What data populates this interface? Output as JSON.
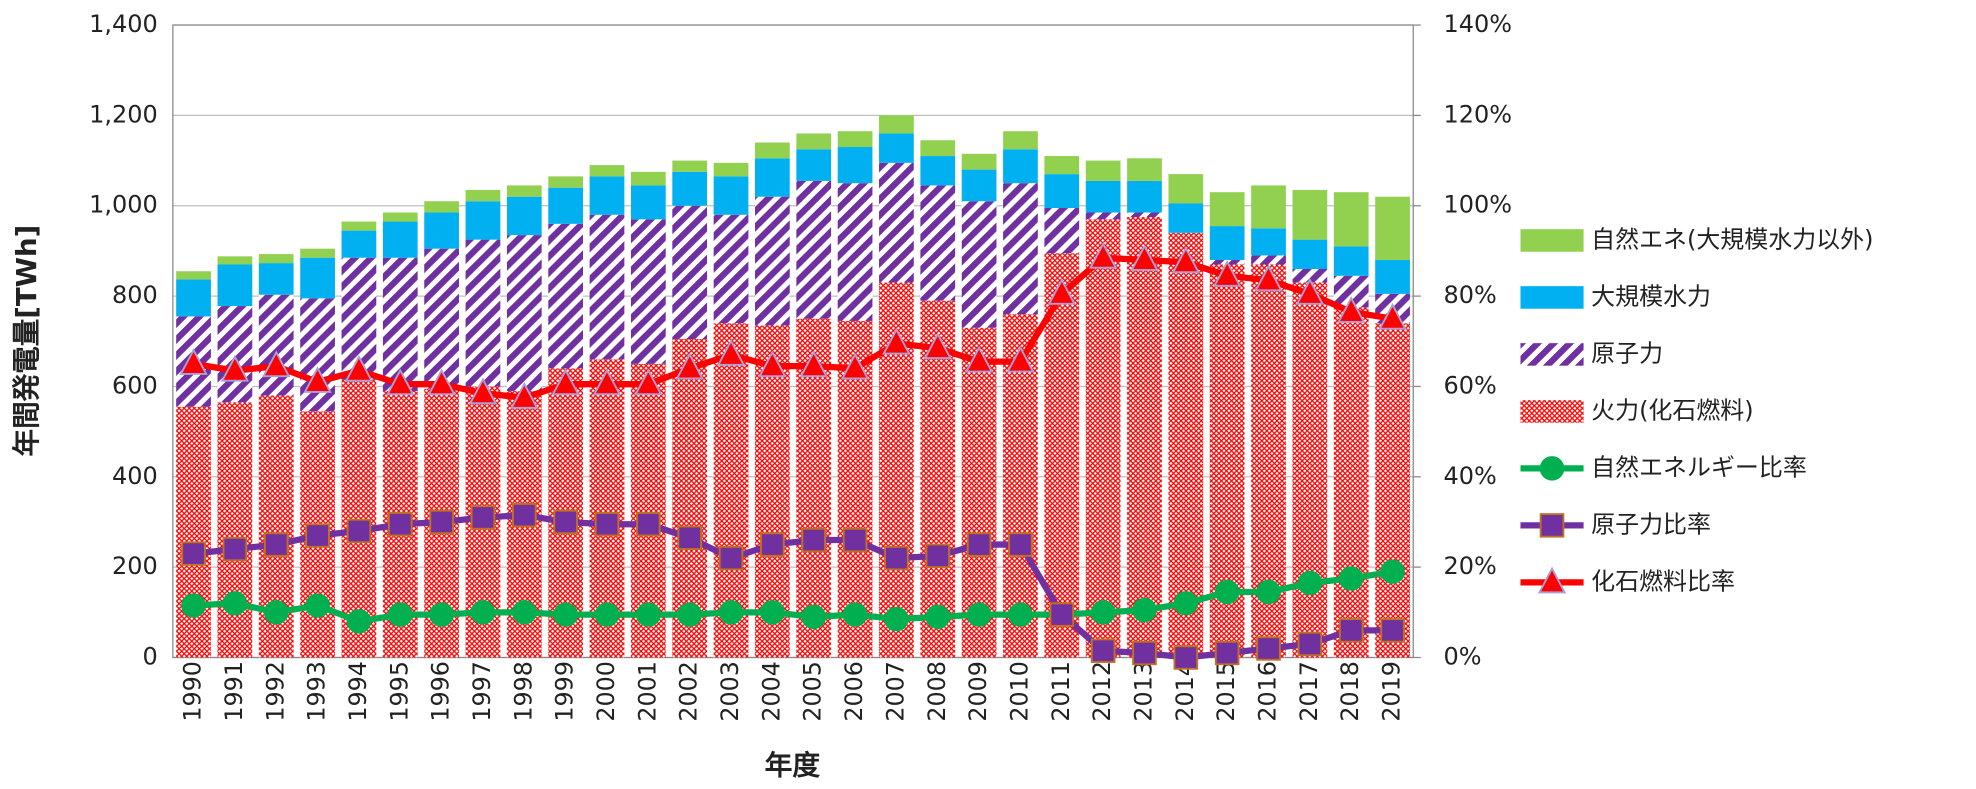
{
  "chart_data": {
    "type": "bar",
    "categories": [
      "1990",
      "1991",
      "1992",
      "1993",
      "1994",
      "1995",
      "1996",
      "1997",
      "1998",
      "1999",
      "2000",
      "2001",
      "2002",
      "2003",
      "2004",
      "2005",
      "2006",
      "2007",
      "2008",
      "2009",
      "2010",
      "2011",
      "2012",
      "2013",
      "2014",
      "2015",
      "2016",
      "2017",
      "2018",
      "2019"
    ],
    "x_label": "年度",
    "y_label": "年間発電量[TWh]",
    "ylim": [
      0,
      1400
    ],
    "yticks": [
      0,
      200,
      400,
      600,
      800,
      {
        "value": 1000,
        "label": "1,000"
      },
      {
        "value": 1200,
        "label": "1,200"
      },
      {
        "value": 1400,
        "label": "1,400"
      }
    ],
    "y2lim": [
      0,
      140
    ],
    "y2ticks": [
      {
        "value": 0,
        "label": "0%"
      },
      {
        "value": 20,
        "label": "20%"
      },
      {
        "value": 40,
        "label": "40%"
      },
      {
        "value": 60,
        "label": "60%"
      },
      {
        "value": 80,
        "label": "80%"
      },
      {
        "value": 100,
        "label": "100%"
      },
      {
        "value": 120,
        "label": "120%"
      },
      {
        "value": 140,
        "label": "140%"
      }
    ],
    "grid": true,
    "legend": "right",
    "stacked": true,
    "series": [
      {
        "name": "火力(化石燃料)",
        "type": "bar",
        "color": "#ff0000",
        "pattern": "crosshatch",
        "values": [
          555,
          565,
          580,
          545,
          615,
          590,
          595,
          600,
          590,
          640,
          660,
          650,
          705,
          740,
          735,
          750,
          745,
          830,
          790,
          730,
          760,
          895,
          970,
          975,
          940,
          870,
          870,
          830,
          775,
          740
        ]
      },
      {
        "name": "原子力",
        "type": "bar",
        "color": "#7030a0",
        "pattern": "diagonal",
        "values": [
          200,
          213,
          223,
          250,
          270,
          295,
          310,
          325,
          345,
          320,
          320,
          320,
          295,
          240,
          285,
          305,
          305,
          265,
          255,
          280,
          290,
          100,
          15,
          10,
          0,
          10,
          20,
          30,
          70,
          65
        ]
      },
      {
        "name": "大規模水力",
        "type": "bar",
        "color": "#00b0f0",
        "pattern": "solid",
        "values": [
          82,
          92,
          70,
          90,
          60,
          80,
          80,
          85,
          85,
          80,
          85,
          75,
          75,
          85,
          85,
          70,
          80,
          65,
          65,
          70,
          75,
          75,
          70,
          70,
          65,
          75,
          60,
          65,
          65,
          75
        ]
      },
      {
        "name": "自然エネ(大規模水力以外)",
        "type": "bar",
        "color": "#92d050",
        "pattern": "solid",
        "values": [
          18,
          18,
          20,
          20,
          20,
          20,
          25,
          25,
          25,
          25,
          25,
          30,
          25,
          30,
          35,
          35,
          35,
          40,
          35,
          35,
          40,
          40,
          45,
          50,
          65,
          75,
          95,
          110,
          120,
          140
        ]
      },
      {
        "name": "自然エネルギー比率",
        "type": "line",
        "axis": "y2",
        "color": "#00b050",
        "marker": "circle",
        "marker_color": "#00b050",
        "values": [
          11.5,
          12,
          10,
          11.5,
          8,
          9.5,
          9.5,
          10,
          10,
          9.5,
          9.5,
          9.5,
          9.5,
          10,
          10,
          9,
          9.5,
          8.5,
          9,
          9.5,
          9.5,
          9.5,
          10,
          10.5,
          12,
          14.5,
          14.5,
          16.5,
          17.5,
          19
        ]
      },
      {
        "name": "原子力比率",
        "type": "line",
        "axis": "y2",
        "color": "#7030a0",
        "marker": "square",
        "marker_color": "#7030a0",
        "values": [
          23,
          24,
          25,
          27,
          28,
          29.5,
          30,
          31,
          31.5,
          30,
          29.5,
          29.5,
          26.5,
          22,
          25,
          26,
          26,
          22,
          22.5,
          25,
          25,
          9.5,
          1.5,
          1,
          0,
          1,
          2,
          3,
          6,
          6
        ]
      },
      {
        "name": "化石燃料比率",
        "type": "line",
        "axis": "y2",
        "color": "#ff0000",
        "marker": "triangle",
        "marker_color": "#ff0000",
        "values": [
          65,
          63.5,
          64.5,
          61,
          63.5,
          60.5,
          60.5,
          58.5,
          57.5,
          60.5,
          60.5,
          60.5,
          64,
          67,
          64.5,
          64.5,
          64,
          69.5,
          68.5,
          65.5,
          65.5,
          80.5,
          88.5,
          88,
          87.5,
          84.5,
          83.5,
          80.5,
          76.5,
          75
        ]
      }
    ]
  }
}
